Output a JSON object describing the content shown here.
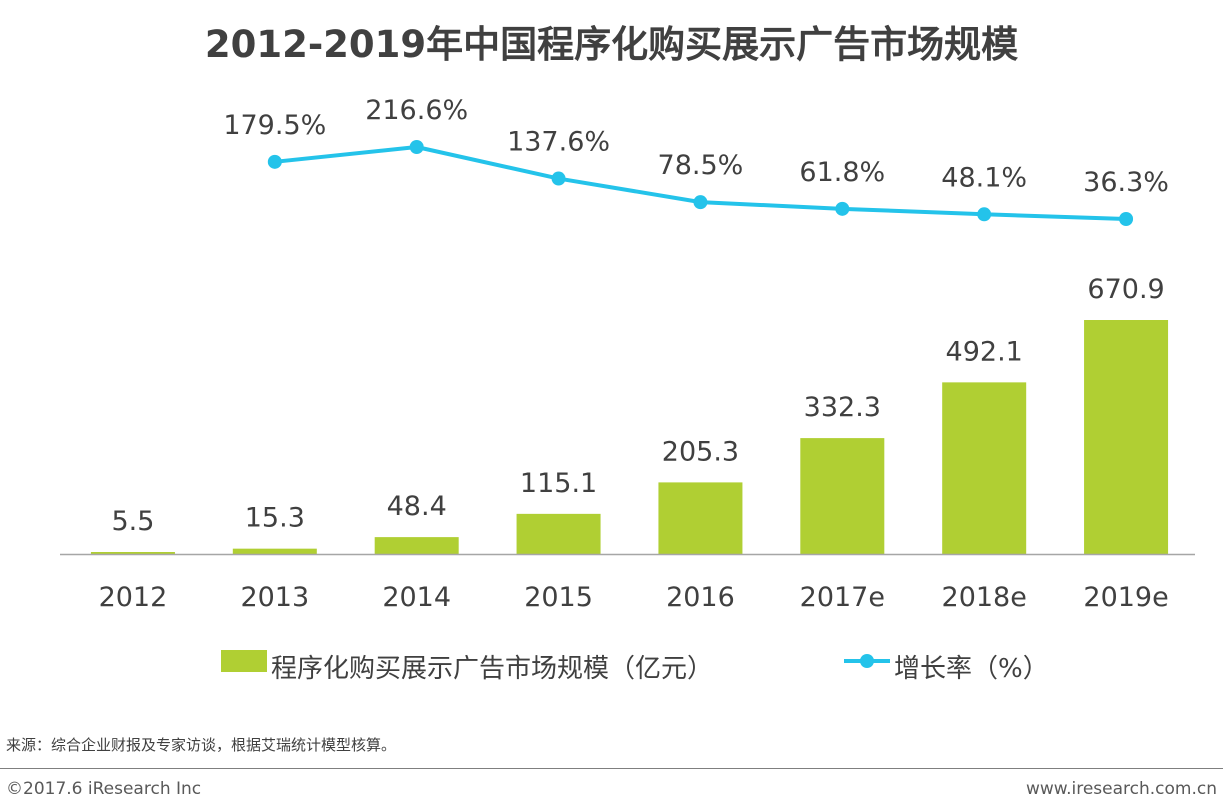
{
  "colors": {
    "bar": "#b0cf33",
    "line": "#24c3ea",
    "text": "#404040",
    "axis": "#a6a6a6"
  },
  "chart_data": {
    "type": "bar",
    "title": "2012-2019年中国程序化购买展示广告市场规模",
    "categories": [
      "2012",
      "2013",
      "2014",
      "2015",
      "2016",
      "2017e",
      "2018e",
      "2019e"
    ],
    "series": [
      {
        "name": "程序化购买展示广告市场规模（亿元）",
        "type": "bar",
        "values": [
          5.5,
          15.3,
          48.4,
          115.1,
          205.3,
          332.3,
          492.1,
          670.9
        ],
        "labels": [
          "5.5",
          "15.3",
          "48.4",
          "115.1",
          "205.3",
          "332.3",
          "492.1",
          "670.9"
        ]
      },
      {
        "name": "增长率（%）",
        "type": "line",
        "values": [
          null,
          179.5,
          216.6,
          137.6,
          78.5,
          61.8,
          48.1,
          36.3
        ],
        "labels": [
          "",
          "179.5%",
          "216.6%",
          "137.6%",
          "78.5%",
          "61.8%",
          "48.1%",
          "36.3%"
        ]
      }
    ],
    "bar_ylim": [
      0,
      700
    ],
    "line_ylim": [
      0,
      230
    ],
    "grid": false,
    "legend_position": "bottom-center"
  },
  "legend": {
    "bar_label": "程序化购买展示广告市场规模（亿元）",
    "line_label": "增长率（%）"
  },
  "source_note": "来源：综合企业财报及专家访谈，根据艾瑞统计模型核算。",
  "footer": {
    "copyright": "©2017.6 iResearch Inc",
    "website": "www.iresearch.com.cn"
  }
}
